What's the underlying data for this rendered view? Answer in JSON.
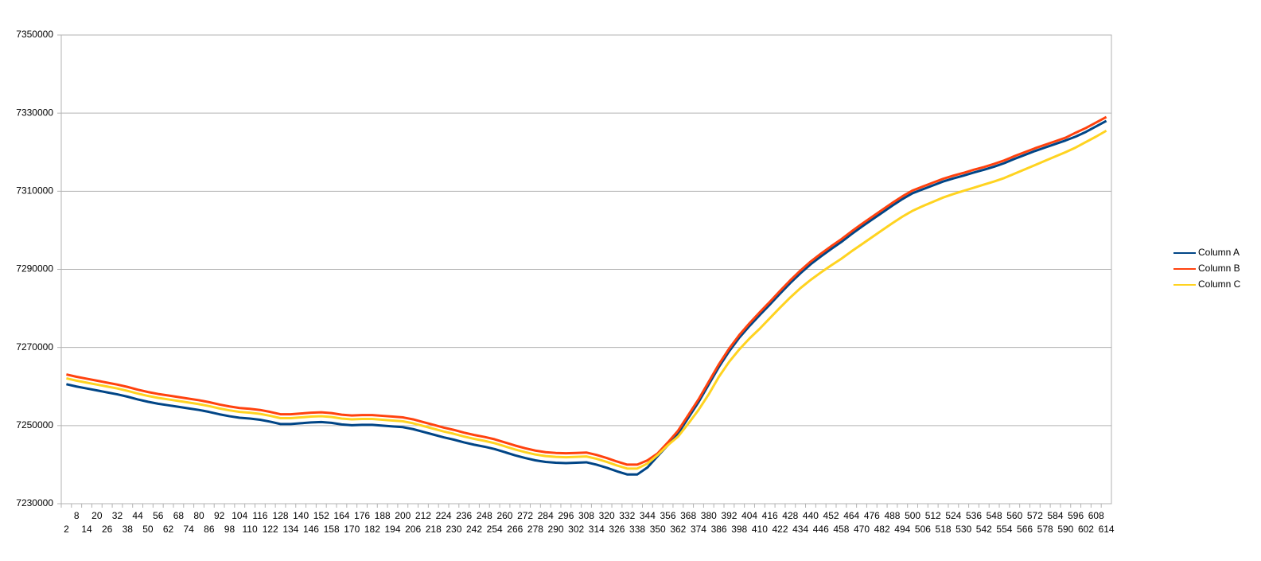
{
  "chart_data": {
    "type": "line",
    "categories": [
      2,
      8,
      14,
      20,
      26,
      32,
      38,
      44,
      50,
      56,
      62,
      68,
      74,
      80,
      86,
      92,
      98,
      104,
      110,
      116,
      122,
      128,
      134,
      140,
      146,
      152,
      158,
      164,
      170,
      176,
      182,
      188,
      194,
      200,
      206,
      212,
      218,
      224,
      230,
      236,
      242,
      248,
      254,
      260,
      266,
      272,
      278,
      284,
      290,
      296,
      302,
      308,
      314,
      320,
      326,
      332,
      338,
      344,
      350,
      356,
      362,
      368,
      374,
      380,
      386,
      392,
      398,
      404,
      410,
      416,
      422,
      428,
      434,
      440,
      446,
      452,
      458,
      464,
      470,
      476,
      482,
      488,
      494,
      500,
      506,
      512,
      518,
      524,
      530,
      536,
      542,
      548,
      554,
      560,
      566,
      572,
      578,
      584,
      590,
      596,
      602,
      608,
      614
    ],
    "series": [
      {
        "name": "Column A",
        "color": "#004586",
        "values": [
          7260600,
          7260000,
          7259500,
          7259000,
          7258500,
          7258000,
          7257400,
          7256700,
          7256100,
          7255600,
          7255200,
          7254800,
          7254400,
          7254000,
          7253500,
          7252900,
          7252400,
          7252000,
          7251800,
          7251500,
          7251000,
          7250400,
          7250400,
          7250600,
          7250800,
          7250900,
          7250700,
          7250300,
          7250100,
          7250200,
          7250200,
          7250000,
          7249800,
          7249600,
          7249100,
          7248400,
          7247700,
          7247000,
          7246400,
          7245700,
          7245100,
          7244600,
          7244000,
          7243200,
          7242400,
          7241700,
          7241100,
          7240700,
          7240500,
          7240400,
          7240500,
          7240600,
          7240000,
          7239200,
          7238300,
          7237500,
          7237500,
          7239300,
          7242200,
          7245000,
          7248000,
          7252000,
          7256000,
          7260500,
          7265000,
          7269000,
          7272500,
          7275500,
          7278300,
          7281000,
          7283800,
          7286500,
          7289000,
          7291300,
          7293300,
          7295200,
          7297000,
          7299000,
          7300900,
          7302700,
          7304500,
          7306300,
          7308000,
          7309500,
          7310500,
          7311500,
          7312500,
          7313300,
          7314000,
          7314800,
          7315500,
          7316300,
          7317200,
          7318300,
          7319300,
          7320300,
          7321200,
          7322100,
          7323000,
          7324000,
          7325200,
          7326600,
          7328000
        ]
      },
      {
        "name": "Column B",
        "color": "#ff420e",
        "values": [
          7263100,
          7262500,
          7262000,
          7261500,
          7261000,
          7260500,
          7259900,
          7259200,
          7258600,
          7258100,
          7257700,
          7257300,
          7256900,
          7256500,
          7256000,
          7255400,
          7254900,
          7254500,
          7254300,
          7254000,
          7253500,
          7252900,
          7252900,
          7253100,
          7253300,
          7253400,
          7253200,
          7252800,
          7252600,
          7252700,
          7252700,
          7252500,
          7252300,
          7252100,
          7251600,
          7250900,
          7250200,
          7249500,
          7248900,
          7248200,
          7247600,
          7247100,
          7246500,
          7245700,
          7244900,
          7244200,
          7243600,
          7243200,
          7243000,
          7242900,
          7243000,
          7243100,
          7242500,
          7241700,
          7240800,
          7240000,
          7240000,
          7241100,
          7242900,
          7245700,
          7248700,
          7252700,
          7256700,
          7261200,
          7265700,
          7269700,
          7273200,
          7276200,
          7279000,
          7281700,
          7284500,
          7287200,
          7289700,
          7292000,
          7294000,
          7295900,
          7297700,
          7299700,
          7301600,
          7303400,
          7305200,
          7307000,
          7308700,
          7310200,
          7311200,
          7312200,
          7313200,
          7314000,
          7314700,
          7315500,
          7316200,
          7317000,
          7317900,
          7319000,
          7320000,
          7321000,
          7321900,
          7322800,
          7323700,
          7325000,
          7326200,
          7327600,
          7329000
        ]
      },
      {
        "name": "Column C",
        "color": "#ffd320",
        "values": [
          7262100,
          7261500,
          7261000,
          7260500,
          7260000,
          7259500,
          7258900,
          7258200,
          7257600,
          7257100,
          7256700,
          7256300,
          7255900,
          7255500,
          7255000,
          7254400,
          7253900,
          7253500,
          7253300,
          7253000,
          7252500,
          7251900,
          7251900,
          7252100,
          7252300,
          7252400,
          7252200,
          7251800,
          7251600,
          7251700,
          7251700,
          7251500,
          7251300,
          7251100,
          7250600,
          7249900,
          7249200,
          7248500,
          7247900,
          7247200,
          7246600,
          7246100,
          7245500,
          7244700,
          7243900,
          7243200,
          7242600,
          7242200,
          7242000,
          7241900,
          7242000,
          7242100,
          7241500,
          7240700,
          7239800,
          7239000,
          7239000,
          7240300,
          7242500,
          7245000,
          7247200,
          7250500,
          7254000,
          7258000,
          7262500,
          7266300,
          7269500,
          7272300,
          7274800,
          7277500,
          7280200,
          7282800,
          7285200,
          7287300,
          7289200,
          7291000,
          7292700,
          7294600,
          7296400,
          7298200,
          7300000,
          7301800,
          7303500,
          7305000,
          7306200,
          7307300,
          7308400,
          7309300,
          7310100,
          7310900,
          7311700,
          7312500,
          7313400,
          7314500,
          7315600,
          7316700,
          7317800,
          7318900,
          7320000,
          7321200,
          7322600,
          7324000,
          7325500
        ]
      }
    ],
    "ylim": [
      7230000,
      7350000
    ],
    "yticks": [
      7230000,
      7250000,
      7270000,
      7290000,
      7310000,
      7330000,
      7350000
    ],
    "grid": true,
    "legend": "right"
  }
}
